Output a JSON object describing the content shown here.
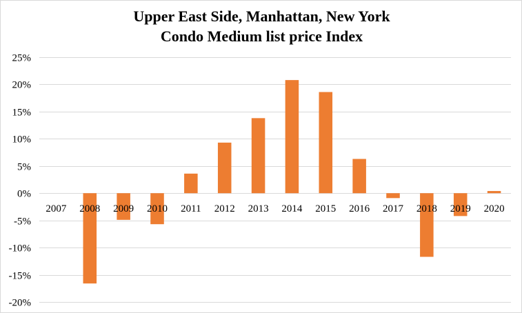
{
  "chart_data": {
    "type": "bar",
    "title": [
      "Upper East Side, Manhattan, New York",
      "Condo Medium list price Index"
    ],
    "xlabel": "",
    "ylabel": "",
    "categories": [
      "2007",
      "2008",
      "2009",
      "2010",
      "2011",
      "2012",
      "2013",
      "2014",
      "2015",
      "2016",
      "2017",
      "2018",
      "2019",
      "2020"
    ],
    "series": [
      {
        "values": [
          0,
          -16.6,
          -4.9,
          -5.7,
          3.6,
          9.3,
          13.8,
          20.8,
          18.6,
          6.3,
          -0.9,
          -11.7,
          -4.2,
          0.4
        ],
        "color": "#ed7d31"
      }
    ],
    "ylim": [
      -20,
      25
    ],
    "yticks": [
      25,
      20,
      15,
      10,
      5,
      0,
      -5,
      -10,
      -15,
      -20
    ],
    "ytick_labels": [
      "25%",
      "20%",
      "15%",
      "10%",
      "5%",
      "0%",
      "-5%",
      "-10%",
      "-15%",
      "-20%"
    ],
    "grid": true,
    "legend": "none",
    "grid_color": "#d9d9d9"
  }
}
